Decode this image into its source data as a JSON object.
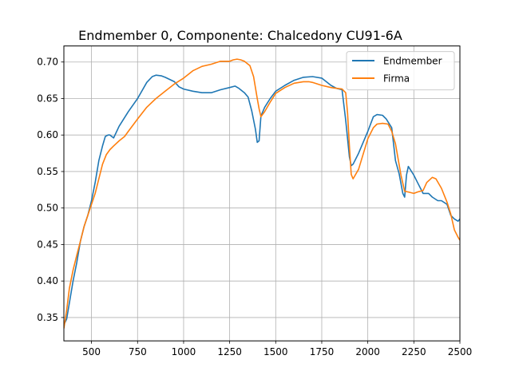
{
  "chart_data": {
    "type": "line",
    "title": "Endmember 0, Componente: Chalcedony CU91-6A",
    "xlabel": "",
    "ylabel": "",
    "xlim": [
      350,
      2500
    ],
    "ylim": [
      0.318,
      0.722
    ],
    "x_ticks": [
      500,
      750,
      1000,
      1250,
      1500,
      1750,
      2000,
      2250,
      2500
    ],
    "x_tick_labels": [
      "500",
      "750",
      "1000",
      "1250",
      "1500",
      "1750",
      "2000",
      "2250",
      "2500"
    ],
    "y_ticks": [
      0.35,
      0.4,
      0.45,
      0.5,
      0.55,
      0.6,
      0.65,
      0.7
    ],
    "y_tick_labels": [
      "0.35",
      "0.40",
      "0.45",
      "0.50",
      "0.55",
      "0.60",
      "0.65",
      "0.70"
    ],
    "grid": true,
    "legend_position": "top-right",
    "series": [
      {
        "name": "Endmember",
        "color": "#1f77b4",
        "x": [
          350,
          365,
          380,
          400,
          420,
          440,
          460,
          480,
          500,
          520,
          540,
          560,
          575,
          590,
          600,
          620,
          650,
          700,
          750,
          800,
          830,
          850,
          880,
          900,
          950,
          975,
          1000,
          1050,
          1100,
          1150,
          1200,
          1250,
          1280,
          1300,
          1330,
          1350,
          1370,
          1390,
          1400,
          1410,
          1420,
          1440,
          1470,
          1500,
          1550,
          1600,
          1650,
          1700,
          1750,
          1800,
          1830,
          1860,
          1880,
          1900,
          1910,
          1920,
          1950,
          2000,
          2030,
          2050,
          2080,
          2100,
          2130,
          2150,
          2170,
          2190,
          2200,
          2210,
          2220,
          2250,
          2270,
          2300,
          2330,
          2350,
          2380,
          2400,
          2430,
          2450,
          2470,
          2490,
          2500
        ],
        "y": [
          0.34,
          0.348,
          0.37,
          0.4,
          0.425,
          0.455,
          0.475,
          0.49,
          0.51,
          0.535,
          0.565,
          0.585,
          0.598,
          0.6,
          0.6,
          0.596,
          0.612,
          0.632,
          0.65,
          0.672,
          0.68,
          0.682,
          0.681,
          0.679,
          0.673,
          0.666,
          0.663,
          0.66,
          0.658,
          0.658,
          0.662,
          0.665,
          0.667,
          0.664,
          0.658,
          0.652,
          0.633,
          0.608,
          0.59,
          0.592,
          0.626,
          0.638,
          0.65,
          0.66,
          0.668,
          0.675,
          0.679,
          0.68,
          0.678,
          0.668,
          0.664,
          0.662,
          0.62,
          0.57,
          0.558,
          0.56,
          0.575,
          0.605,
          0.625,
          0.628,
          0.627,
          0.622,
          0.61,
          0.565,
          0.547,
          0.52,
          0.515,
          0.545,
          0.557,
          0.545,
          0.535,
          0.52,
          0.52,
          0.515,
          0.51,
          0.51,
          0.505,
          0.49,
          0.485,
          0.482,
          0.485
        ]
      },
      {
        "name": "Firma",
        "color": "#ff7f0e",
        "x": [
          350,
          365,
          380,
          400,
          420,
          440,
          460,
          480,
          500,
          520,
          540,
          560,
          580,
          600,
          620,
          650,
          680,
          700,
          750,
          800,
          850,
          900,
          950,
          1000,
          1050,
          1100,
          1150,
          1200,
          1250,
          1270,
          1290,
          1310,
          1330,
          1350,
          1360,
          1380,
          1400,
          1410,
          1420,
          1440,
          1470,
          1500,
          1550,
          1600,
          1650,
          1680,
          1700,
          1750,
          1800,
          1830,
          1860,
          1880,
          1890,
          1900,
          1910,
          1920,
          1950,
          2000,
          2030,
          2050,
          2080,
          2110,
          2130,
          2150,
          2180,
          2200,
          2220,
          2250,
          2270,
          2300,
          2320,
          2350,
          2370,
          2400,
          2430,
          2450,
          2470,
          2490,
          2500
        ],
        "y": [
          0.335,
          0.36,
          0.39,
          0.415,
          0.435,
          0.455,
          0.475,
          0.49,
          0.505,
          0.52,
          0.54,
          0.56,
          0.573,
          0.58,
          0.585,
          0.592,
          0.598,
          0.605,
          0.622,
          0.638,
          0.65,
          0.66,
          0.67,
          0.678,
          0.688,
          0.694,
          0.697,
          0.701,
          0.701,
          0.703,
          0.704,
          0.703,
          0.701,
          0.697,
          0.695,
          0.68,
          0.65,
          0.636,
          0.625,
          0.632,
          0.645,
          0.657,
          0.665,
          0.671,
          0.673,
          0.673,
          0.672,
          0.668,
          0.665,
          0.664,
          0.663,
          0.658,
          0.63,
          0.585,
          0.546,
          0.54,
          0.553,
          0.595,
          0.61,
          0.615,
          0.616,
          0.615,
          0.605,
          0.588,
          0.545,
          0.523,
          0.522,
          0.52,
          0.522,
          0.524,
          0.535,
          0.542,
          0.54,
          0.527,
          0.508,
          0.492,
          0.47,
          0.46,
          0.456
        ]
      }
    ]
  }
}
